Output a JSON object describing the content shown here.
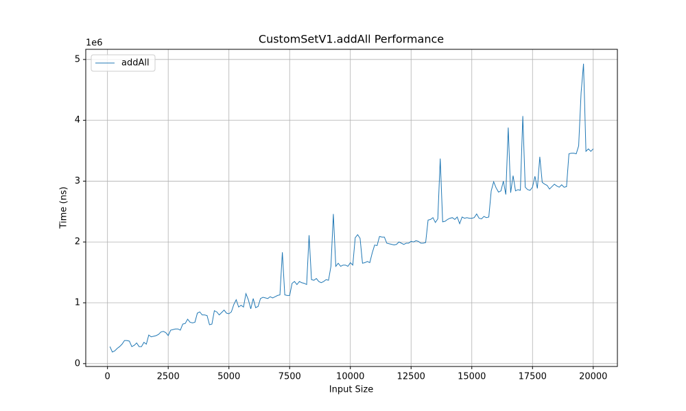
{
  "chart_data": {
    "type": "line",
    "title": "CustomSetV1.addAll Performance",
    "x_label": "Input Size",
    "y_label": "Time (ns)",
    "y_offset_label": "1e6",
    "x": [
      100,
      200,
      300,
      400,
      500,
      600,
      700,
      800,
      900,
      1000,
      1100,
      1200,
      1300,
      1400,
      1500,
      1600,
      1700,
      1800,
      1900,
      2000,
      2100,
      2200,
      2300,
      2400,
      2500,
      2600,
      2700,
      2800,
      2900,
      3000,
      3100,
      3200,
      3300,
      3400,
      3500,
      3600,
      3700,
      3800,
      3900,
      4000,
      4100,
      4200,
      4300,
      4400,
      4500,
      4600,
      4700,
      4800,
      4900,
      5000,
      5100,
      5200,
      5300,
      5400,
      5500,
      5600,
      5700,
      5800,
      5900,
      6000,
      6100,
      6200,
      6300,
      6400,
      6500,
      6600,
      6700,
      6800,
      6900,
      7000,
      7100,
      7200,
      7300,
      7400,
      7500,
      7600,
      7700,
      7800,
      7900,
      8000,
      8100,
      8200,
      8300,
      8400,
      8500,
      8600,
      8700,
      8800,
      8900,
      9000,
      9100,
      9200,
      9300,
      9400,
      9500,
      9600,
      9700,
      9800,
      9900,
      10000,
      10100,
      10200,
      10300,
      10400,
      10500,
      10600,
      10700,
      10800,
      10900,
      11000,
      11100,
      11200,
      11300,
      11400,
      11500,
      11600,
      11700,
      11800,
      11900,
      12000,
      12100,
      12200,
      12300,
      12400,
      12500,
      12600,
      12700,
      12800,
      12900,
      13000,
      13100,
      13200,
      13300,
      13400,
      13500,
      13600,
      13700,
      13800,
      13900,
      14000,
      14100,
      14200,
      14300,
      14400,
      14500,
      14600,
      14700,
      14800,
      14900,
      15000,
      15100,
      15200,
      15300,
      15400,
      15500,
      15600,
      15700,
      15800,
      15900,
      16000,
      16100,
      16200,
      16300,
      16400,
      16500,
      16600,
      16700,
      16800,
      16900,
      17000,
      17100,
      17200,
      17300,
      17400,
      17500,
      17600,
      17700,
      17800,
      17900,
      18000,
      18100,
      18200,
      18300,
      18400,
      18500,
      18600,
      18700,
      18800,
      18900,
      19000,
      19100,
      19200,
      19300,
      19400,
      19500,
      19600,
      19700,
      19800,
      19900,
      20000
    ],
    "series": [
      {
        "name": "addAll",
        "color": "#1f77b4",
        "values": [
          0.28,
          0.19,
          0.21,
          0.25,
          0.28,
          0.32,
          0.38,
          0.38,
          0.37,
          0.28,
          0.3,
          0.34,
          0.28,
          0.28,
          0.35,
          0.32,
          0.47,
          0.44,
          0.45,
          0.46,
          0.48,
          0.52,
          0.53,
          0.51,
          0.46,
          0.55,
          0.56,
          0.57,
          0.57,
          0.55,
          0.65,
          0.66,
          0.73,
          0.68,
          0.67,
          0.68,
          0.83,
          0.85,
          0.8,
          0.8,
          0.79,
          0.64,
          0.65,
          0.87,
          0.85,
          0.8,
          0.84,
          0.88,
          0.83,
          0.82,
          0.85,
          0.97,
          1.05,
          0.93,
          0.96,
          0.93,
          1.15,
          1.05,
          0.9,
          1.07,
          0.92,
          0.94,
          1.07,
          1.09,
          1.08,
          1.07,
          1.1,
          1.08,
          1.1,
          1.12,
          1.13,
          1.83,
          1.13,
          1.12,
          1.12,
          1.32,
          1.35,
          1.3,
          1.35,
          1.33,
          1.32,
          1.3,
          2.11,
          1.38,
          1.37,
          1.4,
          1.35,
          1.33,
          1.35,
          1.38,
          1.37,
          1.6,
          2.46,
          1.6,
          1.65,
          1.6,
          1.62,
          1.62,
          1.6,
          1.66,
          1.62,
          2.07,
          2.12,
          2.06,
          1.65,
          1.66,
          1.68,
          1.66,
          1.82,
          1.95,
          1.94,
          2.09,
          2.08,
          2.08,
          1.98,
          1.97,
          1.96,
          1.95,
          1.96,
          2.0,
          1.98,
          1.96,
          1.98,
          1.98,
          2.01,
          2.0,
          2.02,
          2.01,
          1.98,
          1.98,
          1.99,
          2.36,
          2.37,
          2.4,
          2.32,
          2.38,
          3.37,
          2.33,
          2.34,
          2.37,
          2.39,
          2.4,
          2.37,
          2.41,
          2.3,
          2.41,
          2.39,
          2.4,
          2.39,
          2.39,
          2.4,
          2.46,
          2.39,
          2.38,
          2.42,
          2.4,
          2.41,
          2.84,
          2.99,
          2.89,
          2.82,
          2.84,
          3.0,
          2.78,
          3.88,
          2.81,
          3.09,
          2.84,
          2.86,
          2.85,
          4.07,
          2.9,
          2.86,
          2.85,
          2.9,
          3.08,
          2.88,
          3.4,
          2.98,
          2.95,
          2.93,
          2.87,
          2.91,
          2.95,
          2.92,
          2.9,
          2.94,
          2.9,
          2.91,
          3.45,
          3.46,
          3.46,
          3.45,
          3.58,
          4.45,
          4.93,
          3.49,
          3.53,
          3.49,
          3.53
        ]
      }
    ],
    "xlim": [
      -895,
      20995
    ],
    "xticks": [
      0,
      2500,
      5000,
      7500,
      10000,
      12500,
      15000,
      17500,
      20000
    ],
    "ylim": [
      -0.047,
      5.167
    ],
    "yticks": [
      0,
      1,
      2,
      3,
      4,
      5
    ],
    "grid": true,
    "legend": "upper-left"
  }
}
